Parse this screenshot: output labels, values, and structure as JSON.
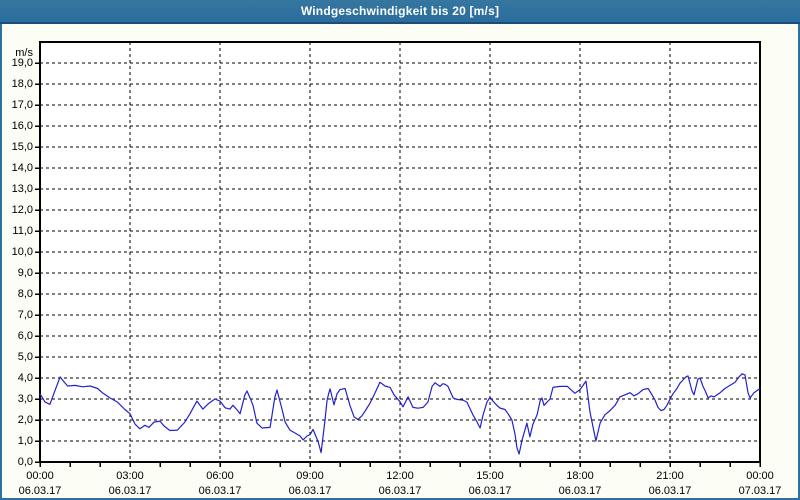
{
  "title": "Windgeschwindigkeit bis 20 [m/s]",
  "colors": {
    "titlebar": "#2E74A3",
    "titlebar_border": "#1A4E79",
    "window_bg": "#FCFDF5",
    "plot_bg": "#FFFFFF",
    "grid": "#000000",
    "axis": "#000000",
    "line": "#2222CC",
    "text": "#000000",
    "title_text": "#FFFFFF"
  },
  "chart_data": {
    "type": "line",
    "title": "Windgeschwindigkeit bis 20 [m/s]",
    "ylabel": "m/s",
    "unit_label": "m/s",
    "ylim": [
      0,
      20
    ],
    "xlim_hours": [
      0,
      24
    ],
    "y_tick_step": 1,
    "y_tick_labels": [
      "0,0",
      "1,0",
      "2,0",
      "3,0",
      "4,0",
      "5,0",
      "6,0",
      "7,0",
      "8,0",
      "9,0",
      "10,0",
      "11,0",
      "12,0",
      "13,0",
      "14,0",
      "15,0",
      "16,0",
      "17,0",
      "18,0",
      "19,0"
    ],
    "x_ticks": [
      {
        "time": "00:00",
        "date": "06.03.17",
        "hour": 0
      },
      {
        "time": "03:00",
        "date": "06.03.17",
        "hour": 3
      },
      {
        "time": "06:00",
        "date": "06.03.17",
        "hour": 6
      },
      {
        "time": "09:00",
        "date": "06.03.17",
        "hour": 9
      },
      {
        "time": "12:00",
        "date": "06.03.17",
        "hour": 12
      },
      {
        "time": "15:00",
        "date": "06.03.17",
        "hour": 15
      },
      {
        "time": "18:00",
        "date": "06.03.17",
        "hour": 18
      },
      {
        "time": "21:00",
        "date": "06.03.17",
        "hour": 21
      },
      {
        "time": "00:00",
        "date": "07.03.17",
        "hour": 24
      }
    ],
    "x_minor_tick_every_hours": 1,
    "x_grid_every_hours": 3,
    "grid": "dashed",
    "legend": "none",
    "series": [
      {
        "name": "Windgeschwindigkeit [m/s]",
        "points": [
          [
            0,
            3.25
          ],
          [
            0.17,
            2.85
          ],
          [
            0.33,
            2.75
          ],
          [
            0.5,
            3.4
          ],
          [
            0.67,
            4.05
          ],
          [
            0.78,
            3.85
          ],
          [
            0.92,
            3.62
          ],
          [
            1.17,
            3.65
          ],
          [
            1.42,
            3.58
          ],
          [
            1.67,
            3.62
          ],
          [
            1.92,
            3.5
          ],
          [
            2.08,
            3.3
          ],
          [
            2.33,
            3.05
          ],
          [
            2.58,
            2.85
          ],
          [
            2.83,
            2.5
          ],
          [
            3,
            2.3
          ],
          [
            3.17,
            1.8
          ],
          [
            3.33,
            1.58
          ],
          [
            3.5,
            1.75
          ],
          [
            3.63,
            1.65
          ],
          [
            3.8,
            1.9
          ],
          [
            4,
            1.95
          ],
          [
            4.13,
            1.72
          ],
          [
            4.33,
            1.5
          ],
          [
            4.58,
            1.52
          ],
          [
            4.83,
            1.9
          ],
          [
            5,
            2.3
          ],
          [
            5.23,
            2.9
          ],
          [
            5.43,
            2.52
          ],
          [
            5.63,
            2.8
          ],
          [
            5.83,
            3
          ],
          [
            6,
            2.9
          ],
          [
            6.17,
            2.58
          ],
          [
            6.33,
            2.52
          ],
          [
            6.43,
            2.7
          ],
          [
            6.57,
            2.48
          ],
          [
            6.67,
            2.3
          ],
          [
            6.83,
            3.2
          ],
          [
            6.9,
            3.38
          ],
          [
            7,
            3.05
          ],
          [
            7.1,
            2.7
          ],
          [
            7.23,
            1.85
          ],
          [
            7.4,
            1.62
          ],
          [
            7.67,
            1.65
          ],
          [
            7.83,
            3.1
          ],
          [
            7.9,
            3.43
          ],
          [
            8.07,
            2.5
          ],
          [
            8.17,
            1.9
          ],
          [
            8.33,
            1.52
          ],
          [
            8.5,
            1.38
          ],
          [
            8.67,
            1.24
          ],
          [
            8.77,
            1.05
          ],
          [
            8.9,
            1.24
          ],
          [
            9,
            1.3
          ],
          [
            9.1,
            1.55
          ],
          [
            9.27,
            0.97
          ],
          [
            9.37,
            0.45
          ],
          [
            9.5,
            2
          ],
          [
            9.57,
            2.95
          ],
          [
            9.63,
            3.3
          ],
          [
            9.67,
            3.48
          ],
          [
            9.8,
            2.72
          ],
          [
            9.9,
            3.25
          ],
          [
            10,
            3.45
          ],
          [
            10.17,
            3.5
          ],
          [
            10.33,
            2.7
          ],
          [
            10.47,
            2.15
          ],
          [
            10.6,
            2.02
          ],
          [
            10.73,
            2.2
          ],
          [
            10.87,
            2.5
          ],
          [
            11,
            2.8
          ],
          [
            11.17,
            3.3
          ],
          [
            11.33,
            3.8
          ],
          [
            11.5,
            3.62
          ],
          [
            11.67,
            3.55
          ],
          [
            11.8,
            3.2
          ],
          [
            12,
            2.87
          ],
          [
            12.1,
            2.63
          ],
          [
            12.27,
            3.1
          ],
          [
            12.43,
            2.6
          ],
          [
            12.6,
            2.56
          ],
          [
            12.77,
            2.6
          ],
          [
            12.93,
            2.85
          ],
          [
            13.07,
            3.6
          ],
          [
            13.17,
            3.77
          ],
          [
            13.33,
            3.6
          ],
          [
            13.43,
            3.73
          ],
          [
            13.5,
            3.7
          ],
          [
            13.6,
            3.6
          ],
          [
            13.77,
            3.05
          ],
          [
            13.9,
            2.98
          ],
          [
            14.1,
            2.95
          ],
          [
            14.23,
            2.85
          ],
          [
            14.33,
            2.55
          ],
          [
            14.43,
            2.25
          ],
          [
            14.57,
            1.9
          ],
          [
            14.67,
            1.62
          ],
          [
            14.77,
            2.25
          ],
          [
            14.9,
            2.85
          ],
          [
            15,
            3.08
          ],
          [
            15.1,
            2.9
          ],
          [
            15.23,
            2.7
          ],
          [
            15.33,
            2.57
          ],
          [
            15.5,
            2.5
          ],
          [
            15.6,
            2.3
          ],
          [
            15.73,
            2
          ],
          [
            15.83,
            1.35
          ],
          [
            15.9,
            0.67
          ],
          [
            15.97,
            0.38
          ],
          [
            16.07,
            1.05
          ],
          [
            16.23,
            1.85
          ],
          [
            16.33,
            1.2
          ],
          [
            16.43,
            1.8
          ],
          [
            16.57,
            2.25
          ],
          [
            16.67,
            2.9
          ],
          [
            16.73,
            3.05
          ],
          [
            16.8,
            2.7
          ],
          [
            17,
            3
          ],
          [
            17.1,
            3.55
          ],
          [
            17.33,
            3.6
          ],
          [
            17.58,
            3.6
          ],
          [
            17.83,
            3.27
          ],
          [
            18,
            3.45
          ],
          [
            18.2,
            3.85
          ],
          [
            18.33,
            2.4
          ],
          [
            18.53,
            1
          ],
          [
            18.67,
            1.85
          ],
          [
            18.83,
            2.25
          ],
          [
            19,
            2.45
          ],
          [
            19.17,
            2.7
          ],
          [
            19.33,
            3.1
          ],
          [
            19.67,
            3.3
          ],
          [
            19.8,
            3.15
          ],
          [
            19.93,
            3.25
          ],
          [
            20.1,
            3.45
          ],
          [
            20.27,
            3.5
          ],
          [
            20.4,
            3.2
          ],
          [
            20.5,
            2.95
          ],
          [
            20.6,
            2.6
          ],
          [
            20.7,
            2.45
          ],
          [
            20.8,
            2.5
          ],
          [
            20.9,
            2.7
          ],
          [
            21,
            3
          ],
          [
            21.1,
            3.25
          ],
          [
            21.23,
            3.5
          ],
          [
            21.33,
            3.75
          ],
          [
            21.43,
            3.9
          ],
          [
            21.53,
            4.05
          ],
          [
            21.6,
            4.1
          ],
          [
            21.73,
            3.4
          ],
          [
            21.8,
            3.2
          ],
          [
            21.93,
            3.95
          ],
          [
            22,
            4
          ],
          [
            22.1,
            3.6
          ],
          [
            22.17,
            3.4
          ],
          [
            22.27,
            3.05
          ],
          [
            22.37,
            3.15
          ],
          [
            22.47,
            3.1
          ],
          [
            22.67,
            3.3
          ],
          [
            22.83,
            3.5
          ],
          [
            23,
            3.65
          ],
          [
            23.17,
            3.8
          ],
          [
            23.3,
            4.05
          ],
          [
            23.4,
            4.2
          ],
          [
            23.5,
            4.15
          ],
          [
            23.6,
            3.3
          ],
          [
            23.67,
            3.05
          ],
          [
            23.8,
            3.3
          ],
          [
            23.9,
            3.4
          ],
          [
            24,
            3.5
          ]
        ]
      }
    ]
  }
}
